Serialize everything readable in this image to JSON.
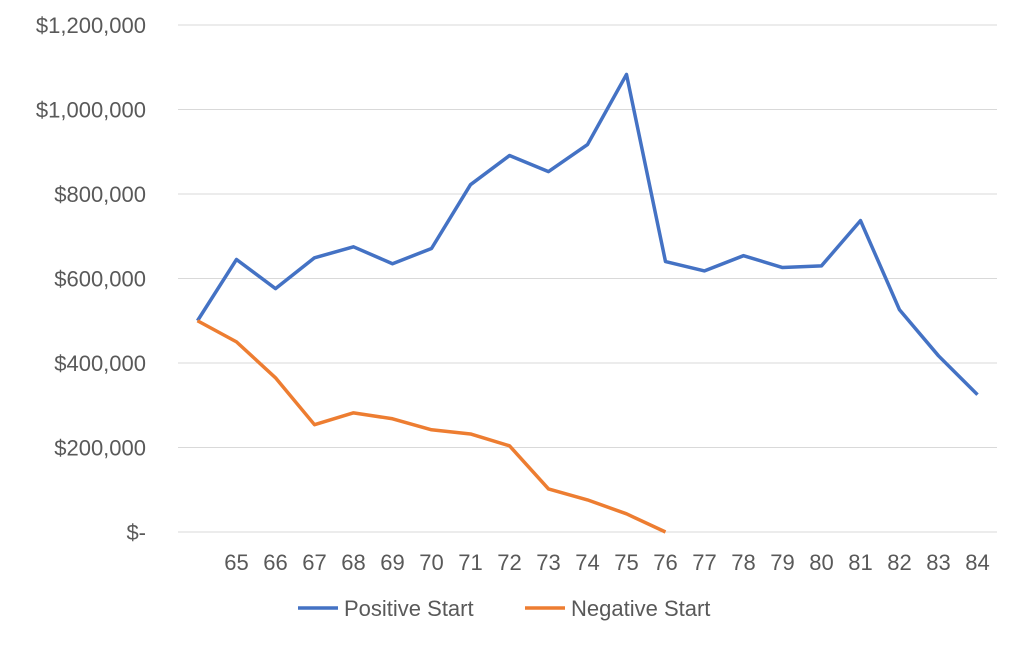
{
  "chart_data": {
    "type": "line",
    "title": "",
    "xlabel": "",
    "ylabel": "",
    "categories": [
      "",
      "65",
      "66",
      "67",
      "68",
      "69",
      "70",
      "71",
      "72",
      "73",
      "74",
      "75",
      "76",
      "77",
      "78",
      "79",
      "80",
      "81",
      "82",
      "83",
      "84"
    ],
    "ylim": [
      0,
      1200000
    ],
    "yticks": [
      0,
      200000,
      400000,
      600000,
      800000,
      1000000,
      1200000
    ],
    "ytick_labels": [
      "$-",
      "$200,000",
      "$400,000",
      "$600,000",
      "$800,000",
      "$1,000,000",
      "$1,200,000"
    ],
    "grid": true,
    "legend_position": "bottom",
    "series": [
      {
        "name": "Positive Start",
        "color": "#4472C4",
        "values": [
          500000,
          645000,
          576000,
          649000,
          675000,
          635000,
          671000,
          822000,
          891000,
          853000,
          917000,
          1083000,
          640000,
          618000,
          654000,
          626000,
          630000,
          737000,
          526000,
          417000,
          325000
        ]
      },
      {
        "name": "Negative Start",
        "color": "#ED7D31",
        "values": [
          500000,
          450000,
          365000,
          254000,
          282000,
          268000,
          242000,
          232000,
          204000,
          102000,
          76000,
          43000,
          0,
          null,
          null,
          null,
          null,
          null,
          null,
          null,
          null
        ]
      }
    ]
  }
}
